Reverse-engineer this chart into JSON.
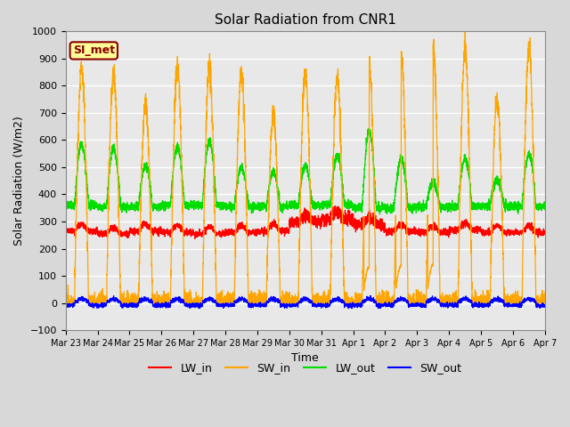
{
  "title": "Solar Radiation from CNR1",
  "xlabel": "Time",
  "ylabel": "Solar Radiation (W/m2)",
  "ylim": [
    -100,
    1000
  ],
  "yticks": [
    -100,
    0,
    100,
    200,
    300,
    400,
    500,
    600,
    700,
    800,
    900,
    1000
  ],
  "fig_bg_color": "#d8d8d8",
  "plot_bg_color": "#e8e8e8",
  "legend_label": "SI_met",
  "legend_box_color": "#ffff99",
  "legend_box_border": "#8B0000",
  "line_colors": {
    "LW_in": "#ff0000",
    "SW_in": "#ffa500",
    "LW_out": "#00dd00",
    "SW_out": "#0000ff"
  },
  "x_tick_labels": [
    "Mar 23",
    "Mar 24",
    "Mar 25",
    "Mar 26",
    "Mar 27",
    "Mar 28",
    "Mar 29",
    "Mar 30",
    "Mar 31",
    "Apr 1",
    "Apr 2",
    "Apr 3",
    "Apr 4",
    "Apr 5",
    "Apr 6",
    "Apr 7"
  ],
  "num_days": 15,
  "points_per_day": 288
}
